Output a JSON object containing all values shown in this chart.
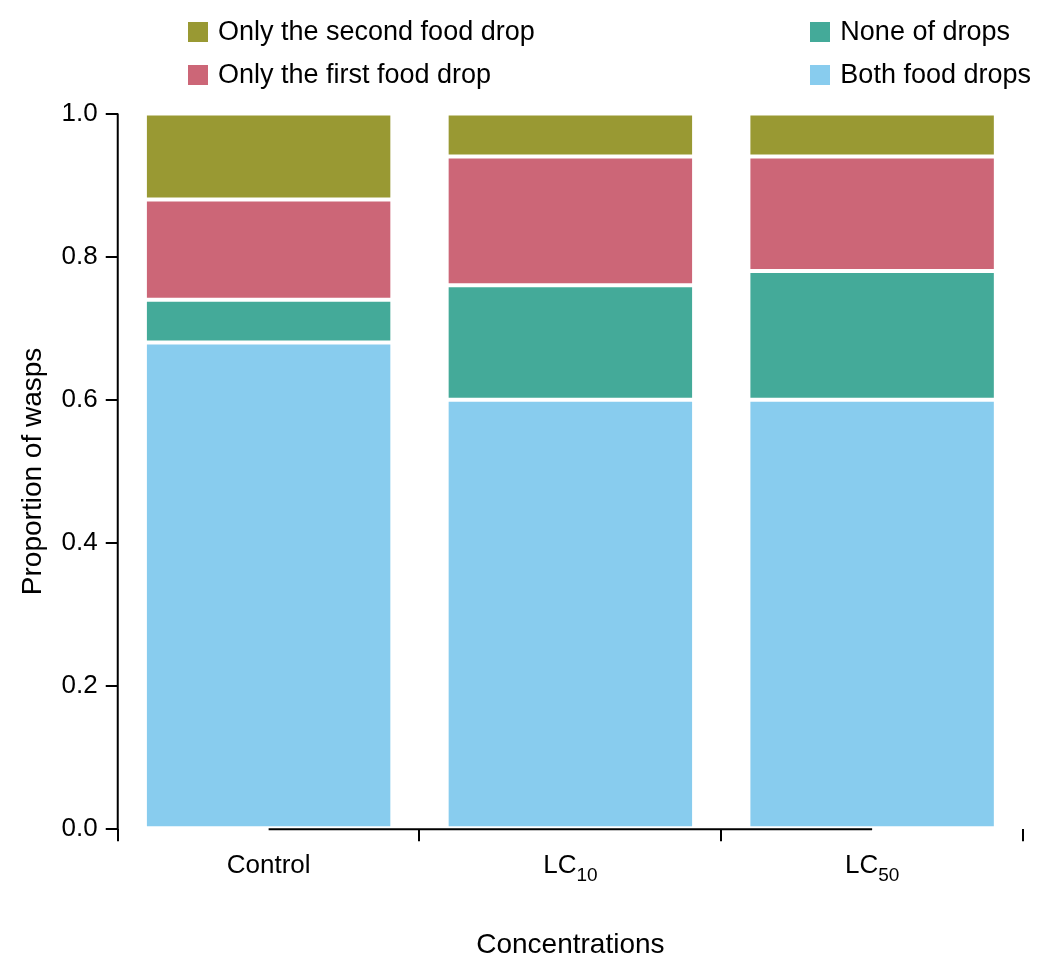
{
  "chart_data": {
    "type": "bar",
    "stacked": true,
    "xlabel": "Concentrations",
    "ylabel": "Proportion of wasps",
    "categories": [
      "Control",
      "LC$_{10}$",
      "LC$_{50}$"
    ],
    "series": [
      {
        "name": "Both food drops",
        "color": "#88ccee",
        "values": [
          0.68,
          0.6,
          0.6
        ]
      },
      {
        "name": "None of drops",
        "color": "#44aa99",
        "values": [
          0.06,
          0.16,
          0.18
        ]
      },
      {
        "name": "Only the first food drop",
        "color": "#cc6677",
        "values": [
          0.14,
          0.18,
          0.16
        ]
      },
      {
        "name": "Only the second food drop",
        "color": "#999933",
        "values": [
          0.12,
          0.06,
          0.06
        ]
      }
    ],
    "ylim": [
      0,
      1
    ],
    "yticks": [
      {
        "value": 0,
        "label": "0.0"
      },
      {
        "value": 0.2,
        "label": "0.2"
      },
      {
        "value": 0.4,
        "label": "0.4"
      },
      {
        "value": 0.6,
        "label": "0.6"
      },
      {
        "value": 0.8,
        "label": "0.8"
      },
      {
        "value": 1,
        "label": "1.0"
      }
    ],
    "grid": false,
    "legend": "top"
  }
}
